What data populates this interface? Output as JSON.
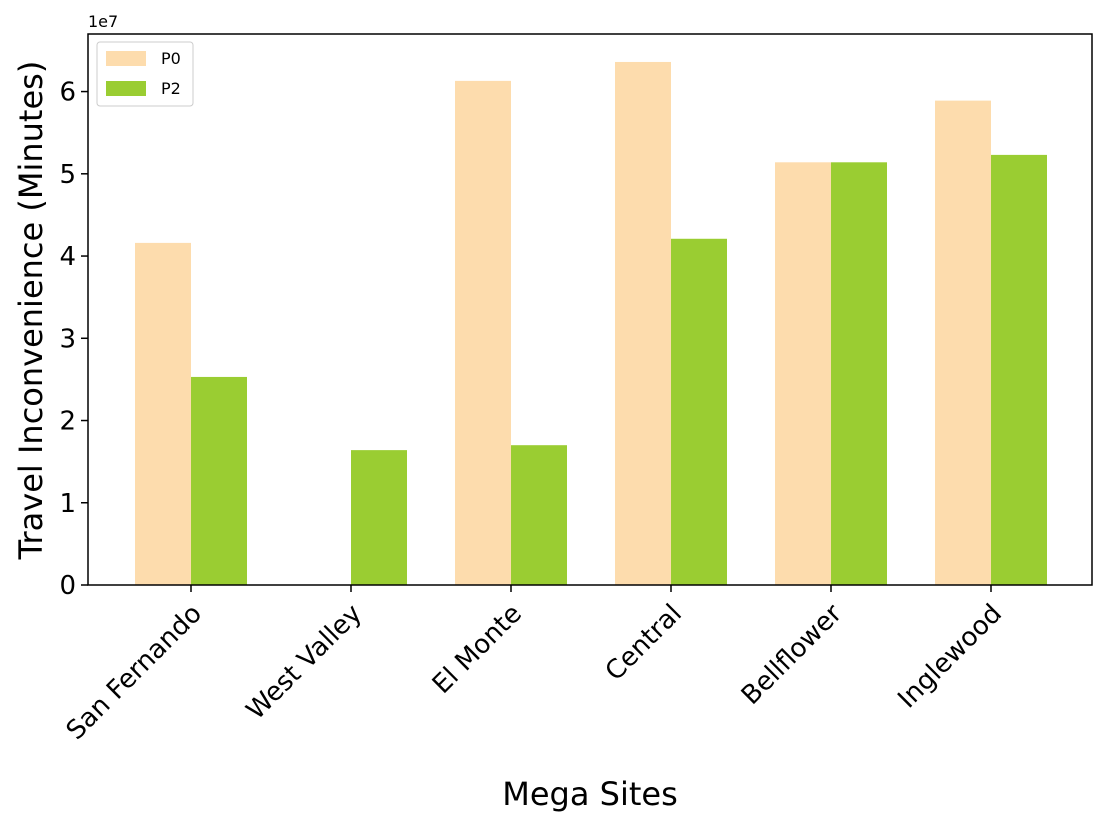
{
  "chart_data": {
    "type": "bar",
    "xlabel": "Mega Sites",
    "ylabel": "Travel Inconvenience (Minutes)",
    "y_offset_label": "1e7",
    "y_scale": 10000000,
    "categories": [
      "San Fernando",
      "West Valley",
      "El Monte",
      "Central",
      "Bellflower",
      "Inglewood"
    ],
    "series": [
      {
        "name": "P0",
        "color": "#fddcad",
        "values": [
          41600000,
          0,
          61300000,
          63600000,
          51400000,
          58900000
        ]
      },
      {
        "name": "P2",
        "color": "#9acd32",
        "values": [
          25300000,
          16400000,
          17000000,
          42100000,
          51400000,
          52300000
        ]
      }
    ],
    "ylim": [
      0,
      67000000
    ],
    "yticks": [
      0,
      1,
      2,
      3,
      4,
      5,
      6
    ],
    "ytick_labels": [
      "0",
      "1",
      "2",
      "3",
      "4",
      "5",
      "6"
    ],
    "grid": false,
    "legend_position": "top-left"
  }
}
